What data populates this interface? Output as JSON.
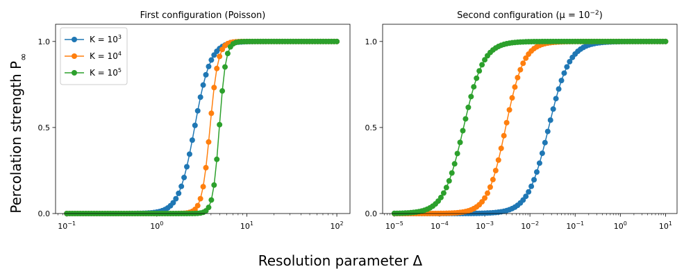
{
  "figure": {
    "ylabel": "Percolation strength P",
    "ylabel_sub": "∞",
    "xlabel": "Resolution parameter Δ"
  },
  "chart_data": [
    {
      "type": "line",
      "title": "First configuration (Poisson)",
      "xscale": "log",
      "xlim": [
        0.075,
        140
      ],
      "ylim": [
        0,
        1.1
      ],
      "xticks": [
        {
          "value": 0.1,
          "base": "10",
          "exp": "−1"
        },
        {
          "value": 1,
          "base": "10",
          "exp": "0"
        },
        {
          "value": 10,
          "base": "10",
          "exp": "1"
        },
        {
          "value": 100,
          "base": "10",
          "exp": "2"
        }
      ],
      "yticks": [
        {
          "value": 0.0,
          "label": "0.0"
        },
        {
          "value": 0.5,
          "label": "0.5"
        },
        {
          "value": 1.0,
          "label": "1.0"
        }
      ],
      "legend": {
        "placement": "top-left",
        "entries": [
          {
            "prefix": "K = 10",
            "exp": "3"
          },
          {
            "prefix": "K = 10",
            "exp": "4"
          },
          {
            "prefix": "K = 10",
            "exp": "5"
          }
        ]
      },
      "x_range": [
        0.1,
        100
      ],
      "n_points": 100,
      "series": [
        {
          "color": "#1f77b4",
          "center": 2.63,
          "width": 0.088
        },
        {
          "color": "#ff7f0e",
          "center": 3.9,
          "width": 0.045
        },
        {
          "color": "#2ca02c",
          "center": 4.95,
          "width": 0.036
        }
      ]
    },
    {
      "type": "line",
      "title": "Second configuration (μ = 10",
      "title_exp": "−2",
      "title_end": ")",
      "xscale": "log",
      "xlim": [
        5.5e-06,
        18
      ],
      "ylim": [
        0,
        1.1
      ],
      "xticks": [
        {
          "value": 1e-05,
          "base": "10",
          "exp": "−5"
        },
        {
          "value": 0.0001,
          "base": "10",
          "exp": "−4"
        },
        {
          "value": 0.001,
          "base": "10",
          "exp": "−3"
        },
        {
          "value": 0.01,
          "base": "10",
          "exp": "−2"
        },
        {
          "value": 0.1,
          "base": "10",
          "exp": "−1"
        },
        {
          "value": 1,
          "base": "10",
          "exp": "0"
        },
        {
          "value": 10,
          "base": "10",
          "exp": "1"
        }
      ],
      "yticks": [
        {
          "value": 0.0,
          "label": "0.0"
        },
        {
          "value": 0.5,
          "label": "0.5"
        },
        {
          "value": 1.0,
          "label": "1.0"
        }
      ],
      "x_range": [
        1e-05,
        10
      ],
      "n_points": 100,
      "series": [
        {
          "color": "#1f77b4",
          "center": 0.026,
          "width": 0.23
        },
        {
          "color": "#ff7f0e",
          "center": 0.0029,
          "width": 0.2
        },
        {
          "color": "#2ca02c",
          "center": 0.00034,
          "width": 0.22
        }
      ]
    }
  ]
}
